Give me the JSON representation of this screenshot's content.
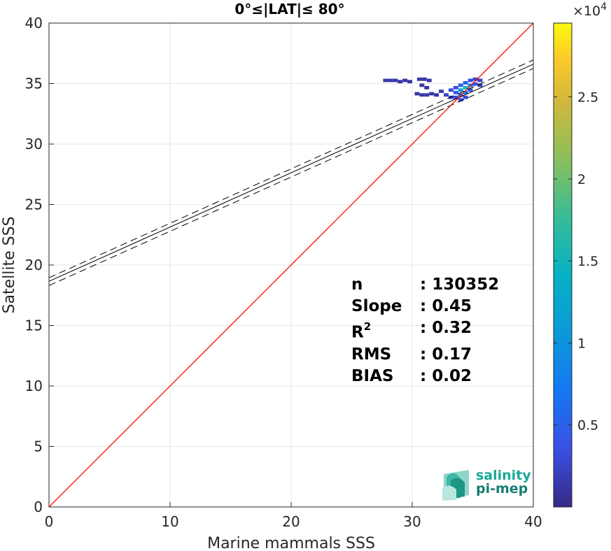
{
  "title": "0°≤|LAT|≤ 80°",
  "logo": {
    "line1": "salinity",
    "line2": "pi-mep"
  },
  "stats": [
    {
      "label": "n",
      "value": ": 130352"
    },
    {
      "label": "Slope",
      "value": ": 0.45"
    },
    {
      "label": "R",
      "sup": "2",
      "value": ": 0.32"
    },
    {
      "label": "RMS",
      "value": ": 0.17"
    },
    {
      "label": "BIAS",
      "value": ": 0.02"
    }
  ],
  "colorbar": {
    "exponent_label": "×10",
    "exponent": "4",
    "ticks": [
      "0.5",
      "1",
      "1.5",
      "2",
      "2.5"
    ],
    "tick_values": [
      0.5,
      1,
      1.5,
      2,
      2.5
    ],
    "range": [
      0,
      2.95
    ],
    "colormap": "parula"
  },
  "chart_data": {
    "type": "heatmap",
    "title": "0°≤|LAT|≤ 80°",
    "xlabel": "Marine mammals SSS",
    "ylabel": "Satellite SSS",
    "xlim": [
      0,
      40
    ],
    "ylim": [
      0,
      40
    ],
    "xticks": [
      "0",
      "10",
      "20",
      "30",
      "40"
    ],
    "yticks": [
      "0",
      "5",
      "10",
      "15",
      "20",
      "25",
      "30",
      "35",
      "40"
    ],
    "grid": true,
    "identity_line": {
      "color": "#ff0000",
      "points": [
        [
          0,
          0
        ],
        [
          40,
          40
        ]
      ]
    },
    "regression_line": {
      "color": "#000000",
      "points": [
        [
          0,
          18.65
        ],
        [
          40,
          36.6
        ]
      ]
    },
    "confidence_upper": {
      "color": "#000000",
      "style": "dashed",
      "points": [
        [
          0,
          18.95
        ],
        [
          40,
          36.95
        ]
      ]
    },
    "confidence_lower": {
      "color": "#000000",
      "style": "dashed",
      "points": [
        [
          0,
          18.3
        ],
        [
          40,
          36.25
        ]
      ]
    },
    "density_cells_x1e4": [
      [
        27.8,
        35.2,
        0.02
      ],
      [
        28.2,
        35.2,
        0.02
      ],
      [
        28.6,
        35.2,
        0.02
      ],
      [
        29.0,
        35.1,
        0.02
      ],
      [
        29.4,
        35.2,
        0.02
      ],
      [
        29.8,
        35.1,
        0.02
      ],
      [
        30.6,
        35.3,
        0.02
      ],
      [
        31.0,
        35.3,
        0.02
      ],
      [
        31.4,
        35.2,
        0.02
      ],
      [
        30.8,
        34.8,
        0.02
      ],
      [
        31.2,
        34.6,
        0.02
      ],
      [
        30.4,
        34.1,
        0.02
      ],
      [
        30.8,
        34.0,
        0.02
      ],
      [
        31.2,
        34.0,
        0.02
      ],
      [
        31.6,
        34.1,
        0.02
      ],
      [
        32.0,
        34.0,
        0.02
      ],
      [
        32.4,
        34.3,
        0.03
      ],
      [
        32.8,
        34.0,
        0.04
      ],
      [
        33.2,
        34.4,
        0.05
      ],
      [
        33.2,
        33.8,
        0.04
      ],
      [
        33.6,
        34.6,
        0.06
      ],
      [
        33.6,
        34.2,
        0.07
      ],
      [
        33.6,
        33.8,
        0.05
      ],
      [
        34.0,
        34.8,
        0.08
      ],
      [
        34.0,
        34.4,
        0.18
      ],
      [
        34.0,
        34.0,
        0.09
      ],
      [
        34.0,
        33.6,
        0.05
      ],
      [
        34.4,
        35.0,
        0.08
      ],
      [
        34.4,
        34.6,
        0.25
      ],
      [
        34.4,
        34.2,
        0.12
      ],
      [
        34.4,
        33.8,
        0.05
      ],
      [
        34.8,
        35.2,
        0.06
      ],
      [
        34.8,
        34.8,
        0.16
      ],
      [
        34.8,
        34.4,
        0.08
      ],
      [
        35.2,
        35.3,
        0.05
      ],
      [
        35.2,
        34.9,
        0.06
      ],
      [
        35.6,
        35.2,
        0.04
      ],
      [
        35.6,
        34.8,
        0.03
      ]
    ]
  }
}
